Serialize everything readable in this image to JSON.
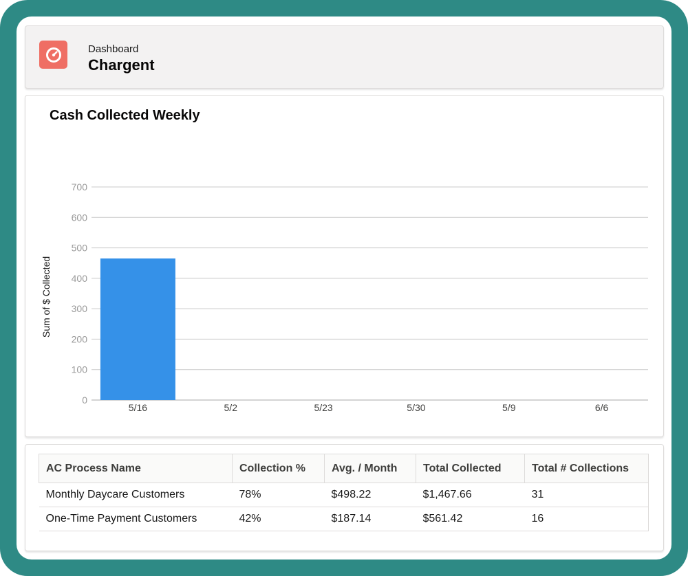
{
  "header": {
    "eyebrow": "Dashboard",
    "title": "Chargent",
    "icon": "gauge-icon",
    "icon_color": "#ef6e64"
  },
  "chart_card": {
    "title": "Cash Collected Weekly"
  },
  "chart_data": {
    "type": "bar",
    "title": "Cash Collected Weekly",
    "xlabel": "",
    "ylabel": "Sum of $ Collected",
    "categories": [
      "5/16",
      "5/2",
      "5/23",
      "5/30",
      "5/9",
      "6/6"
    ],
    "values": [
      465,
      0,
      0,
      0,
      0,
      0
    ],
    "ylim": [
      0,
      700
    ],
    "yticks": [
      0,
      100,
      200,
      300,
      400,
      500,
      600,
      700
    ],
    "grid": true,
    "bar_color": "#3591e8"
  },
  "table": {
    "columns": [
      "AC Process Name",
      "Collection %",
      "Avg. / Month",
      "Total Collected",
      "Total # Collections"
    ],
    "rows": [
      [
        "Monthly Daycare Customers",
        "78%",
        "$498.22",
        "$1,467.66",
        "31"
      ],
      [
        "One-Time Payment Customers",
        "42%",
        "$187.14",
        "$561.42",
        "16"
      ]
    ]
  },
  "colors": {
    "frame": "#2e8a85",
    "header_bg": "#f3f2f2"
  }
}
